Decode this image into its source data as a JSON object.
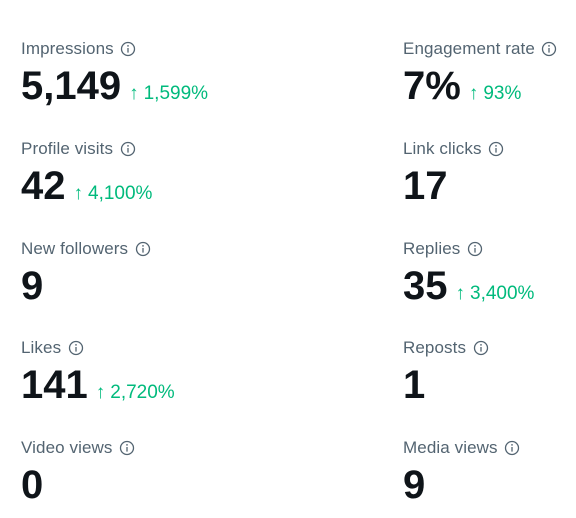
{
  "metrics": [
    {
      "label": "Impressions",
      "value": "5,149",
      "change": "1,599%",
      "arrow": "↑"
    },
    {
      "label": "Engagement rate",
      "value": "7%",
      "change": "93%",
      "arrow": "↑"
    },
    {
      "label": "Profile visits",
      "value": "42",
      "change": "4,100%",
      "arrow": "↑"
    },
    {
      "label": "Link clicks",
      "value": "17"
    },
    {
      "label": "New followers",
      "value": "9"
    },
    {
      "label": "Replies",
      "value": "35",
      "change": "3,400%",
      "arrow": "↑"
    },
    {
      "label": "Likes",
      "value": "141",
      "change": "2,720%",
      "arrow": "↑"
    },
    {
      "label": "Reposts",
      "value": "1"
    },
    {
      "label": "Video views",
      "value": "0"
    },
    {
      "label": "Media views",
      "value": "9"
    }
  ],
  "colors": {
    "label": "#536471",
    "value": "#0f1419",
    "positive_change": "#00ba7c"
  },
  "icons": {
    "info": "info-circle-icon",
    "arrow": "arrow-up-icon"
  }
}
